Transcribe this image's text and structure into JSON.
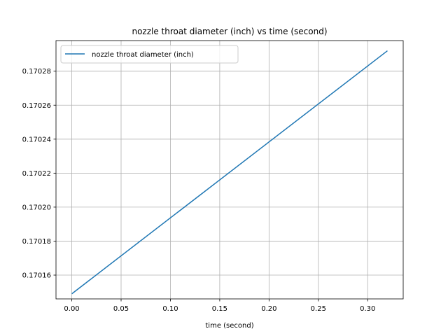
{
  "chart_data": {
    "type": "line",
    "title": "nozzle throat diameter (inch) vs time (second)",
    "xlabel": "time (second)",
    "ylabel": "",
    "xlim": [
      -0.016,
      0.336
    ],
    "ylim": [
      0.170146,
      0.170298
    ],
    "x_ticks": [
      0.0,
      0.05,
      0.1,
      0.15,
      0.2,
      0.25,
      0.3
    ],
    "x_tick_labels": [
      "0.00",
      "0.05",
      "0.10",
      "0.15",
      "0.20",
      "0.25",
      "0.30"
    ],
    "y_ticks": [
      0.17016,
      0.17018,
      0.1702,
      0.17022,
      0.17024,
      0.17026,
      0.17028
    ],
    "y_tick_labels": [
      "0.17016",
      "0.17018",
      "0.17020",
      "0.17022",
      "0.17024",
      "0.17026",
      "0.17028"
    ],
    "grid": true,
    "legend_position": "upper-left",
    "series": [
      {
        "name": "nozzle throat diameter (inch)",
        "color": "#1f77b4",
        "x": [
          0.0,
          0.32
        ],
        "y": [
          0.170149,
          0.170292
        ]
      }
    ]
  }
}
